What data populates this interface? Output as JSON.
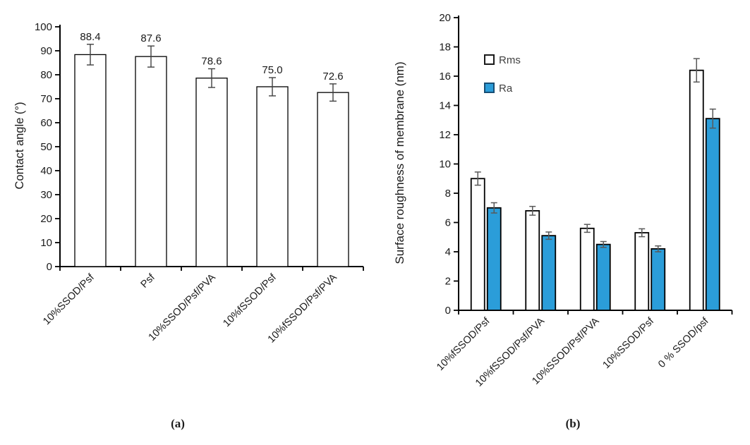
{
  "figure": {
    "description": "Two-panel bar chart figure"
  },
  "chart_data": [
    {
      "panel": "a",
      "type": "bar",
      "title": "",
      "xlabel": "",
      "ylabel": "Contact angle (°)",
      "ylim": [
        0,
        100
      ],
      "ytick_step": 10,
      "yticks": [
        0,
        10,
        20,
        30,
        40,
        50,
        60,
        70,
        80,
        90,
        100
      ],
      "grid": false,
      "legend": null,
      "caption": "(a)",
      "categories": [
        "10%SSOD/Psf",
        "Psf",
        "10%SSOD/Psf/PVA",
        "10%fSSOD/Psf",
        "10%fSSOD/Psf/PVA"
      ],
      "series": [
        {
          "name": "Contact angle",
          "color": "#ffffff",
          "values": [
            88.4,
            87.6,
            78.6,
            75.0,
            72.6
          ],
          "errors": [
            4.3,
            4.4,
            3.9,
            3.8,
            3.6
          ],
          "data_labels": [
            "88.4",
            "87.6",
            "78.6",
            "75.0",
            "72.6"
          ]
        }
      ]
    },
    {
      "panel": "b",
      "type": "bar",
      "title": "",
      "xlabel": "",
      "ylabel": "Surface roughness of membrane (nm)",
      "ylim": [
        0,
        20
      ],
      "ytick_step": 2,
      "yticks": [
        0,
        2,
        4,
        6,
        8,
        10,
        12,
        14,
        16,
        18,
        20
      ],
      "grid": false,
      "legend": {
        "position": "top-left",
        "entries": [
          "Rms",
          "Ra"
        ]
      },
      "caption": "(b)",
      "categories": [
        "10%fSSOD/Psf",
        "10%fSSOD/Psf/PVA",
        "10%SSOD/Psf/PVA",
        "10%SSOD/Psf",
        "0 % SSOD/psf"
      ],
      "series": [
        {
          "name": "Rms",
          "color": "#ffffff",
          "values": [
            9.0,
            6.8,
            5.6,
            5.3,
            16.4
          ],
          "errors": [
            0.45,
            0.3,
            0.27,
            0.27,
            0.8
          ]
        },
        {
          "name": "Ra",
          "color": "#2b9dd9",
          "values": [
            7.0,
            5.1,
            4.5,
            4.2,
            13.1
          ],
          "errors": [
            0.35,
            0.25,
            0.2,
            0.2,
            0.65
          ]
        }
      ]
    }
  ]
}
